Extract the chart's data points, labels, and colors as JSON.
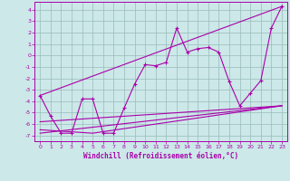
{
  "xlabel": "Windchill (Refroidissement éolien,°C)",
  "background_color": "#cce8e8",
  "line_color": "#aa00aa",
  "grid_color": "#99bbbb",
  "xlim": [
    -0.5,
    23.5
  ],
  "ylim": [
    -7.5,
    4.7
  ],
  "xticks": [
    0,
    1,
    2,
    3,
    4,
    5,
    6,
    7,
    8,
    9,
    10,
    11,
    12,
    13,
    14,
    15,
    16,
    17,
    18,
    19,
    20,
    21,
    22,
    23
  ],
  "yticks": [
    -7,
    -6,
    -5,
    -4,
    -3,
    -2,
    -1,
    0,
    1,
    2,
    3,
    4
  ],
  "series_main_x": [
    0,
    1,
    2,
    3,
    4,
    5,
    6,
    7,
    8,
    9,
    10,
    11,
    12,
    13,
    14,
    15,
    16,
    17,
    18,
    19,
    20,
    21,
    22,
    23
  ],
  "series_main_y": [
    -3.5,
    -5.3,
    -6.8,
    -6.8,
    -3.8,
    -3.8,
    -6.8,
    -6.8,
    -4.6,
    -2.5,
    -0.8,
    -0.9,
    -0.6,
    2.4,
    0.3,
    0.6,
    0.7,
    0.3,
    -2.3,
    -4.4,
    -3.3,
    -2.2,
    2.4,
    4.3
  ],
  "line1_x": [
    0,
    23
  ],
  "line1_y": [
    -3.5,
    4.3
  ],
  "line2_x": [
    0,
    23
  ],
  "line2_y": [
    -6.8,
    -4.4
  ],
  "line3_x": [
    0,
    5,
    23
  ],
  "line3_y": [
    -6.5,
    -6.8,
    -4.4
  ],
  "line4_x": [
    0,
    23
  ],
  "line4_y": [
    -5.8,
    -4.4
  ]
}
